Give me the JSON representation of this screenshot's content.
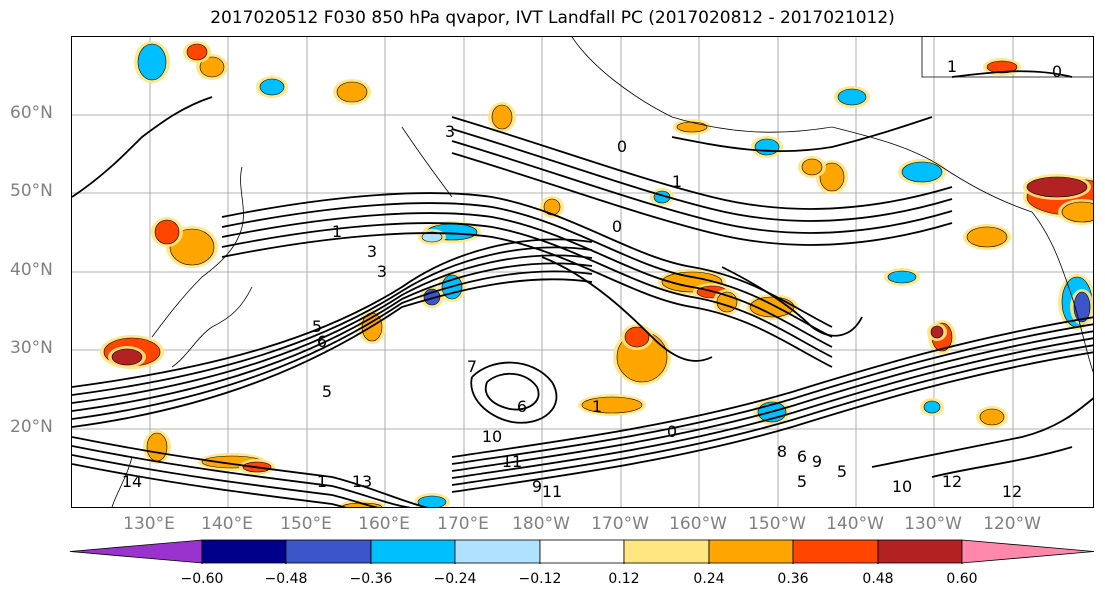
{
  "title": "2017020512 F030 850 hPa qvapor, IVT Landfall PC (2017020812 - 2017021012)",
  "map": {
    "lat_labels": [
      "60°N",
      "50°N",
      "40°N",
      "30°N",
      "20°N"
    ],
    "lon_labels": [
      "130°E",
      "140°E",
      "150°E",
      "160°E",
      "170°E",
      "180°W",
      "170°W",
      "160°W",
      "150°W",
      "140°W",
      "130°W",
      "120°W"
    ],
    "contour_labels": [
      "1",
      "0",
      "3",
      "0",
      "1",
      "0",
      "1",
      "3",
      "5",
      "6",
      "7",
      "5",
      "6",
      "1",
      "0",
      "10",
      "11",
      "6",
      "9",
      "5",
      "5",
      "8",
      "12",
      "10",
      "12",
      "11",
      "9",
      "14",
      "13",
      "1",
      "3"
    ]
  },
  "colorbar": {
    "ticks": [
      "−0.60",
      "−0.48",
      "−0.36",
      "−0.24",
      "−0.12",
      "0.12",
      "0.24",
      "0.36",
      "0.48",
      "0.60"
    ],
    "colors": [
      "#9a32cd",
      "#00008b",
      "#3a56c8",
      "#00bfff",
      "#b0e2ff",
      "#ffffff",
      "#ffe680",
      "#ffa500",
      "#ff4500",
      "#b22222",
      "#ff88aa"
    ]
  }
}
